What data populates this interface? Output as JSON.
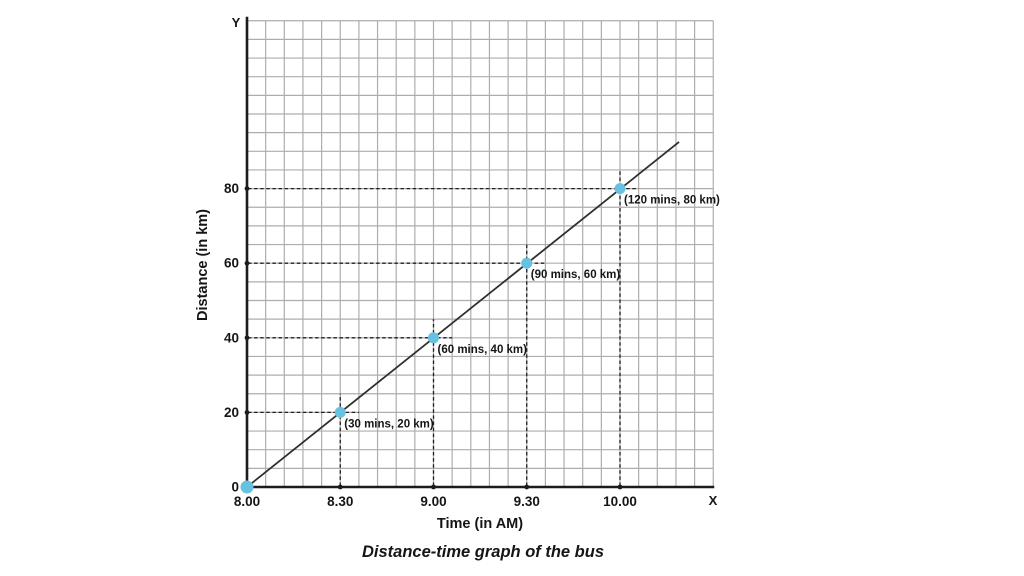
{
  "chart_data": {
    "type": "line",
    "title": "Distance-time graph of the bus",
    "xlabel": "Time (in AM)",
    "ylabel": "Distance (in km)",
    "x_axis_letter": "X",
    "y_axis_letter": "Y",
    "x_ticks": [
      {
        "label": "8.00",
        "mins": 0
      },
      {
        "label": "8.30",
        "mins": 30
      },
      {
        "label": "9.00",
        "mins": 60
      },
      {
        "label": "9.30",
        "mins": 90
      },
      {
        "label": "10.00",
        "mins": 120
      }
    ],
    "y_ticks": [
      {
        "label": "0",
        "km": 0
      },
      {
        "label": "20",
        "km": 20
      },
      {
        "label": "40",
        "km": 40
      },
      {
        "label": "60",
        "km": 60
      },
      {
        "label": "80",
        "km": 80
      }
    ],
    "points": [
      {
        "t": 30,
        "d": 20,
        "label": "(30 mins, 20 km)"
      },
      {
        "t": 60,
        "d": 40,
        "label": "(60 mins, 40 km)"
      },
      {
        "t": 90,
        "d": 60,
        "label": "(90 mins, 60 km)"
      },
      {
        "t": 120,
        "d": 80,
        "label": "(120 mins, 80 km)"
      }
    ],
    "origin_point": {
      "t": 0,
      "d": 0
    },
    "line_extends_to": {
      "t": 139,
      "d": 92.5
    },
    "axis_ranges": {
      "x_mins": [
        0,
        150
      ],
      "y_km": [
        0,
        100
      ]
    },
    "grid": {
      "cols": 25,
      "rows": 25,
      "minutes_per_cell": 6,
      "km_per_cell": 5
    },
    "legend": "none",
    "colors": {
      "point": "#66c2e0",
      "line": "#2f2f2f",
      "grid": "#adadad",
      "axis": "#1c1c1c",
      "dash": "#1f1f1f",
      "text": "#151515",
      "background": "#ffffff"
    }
  }
}
